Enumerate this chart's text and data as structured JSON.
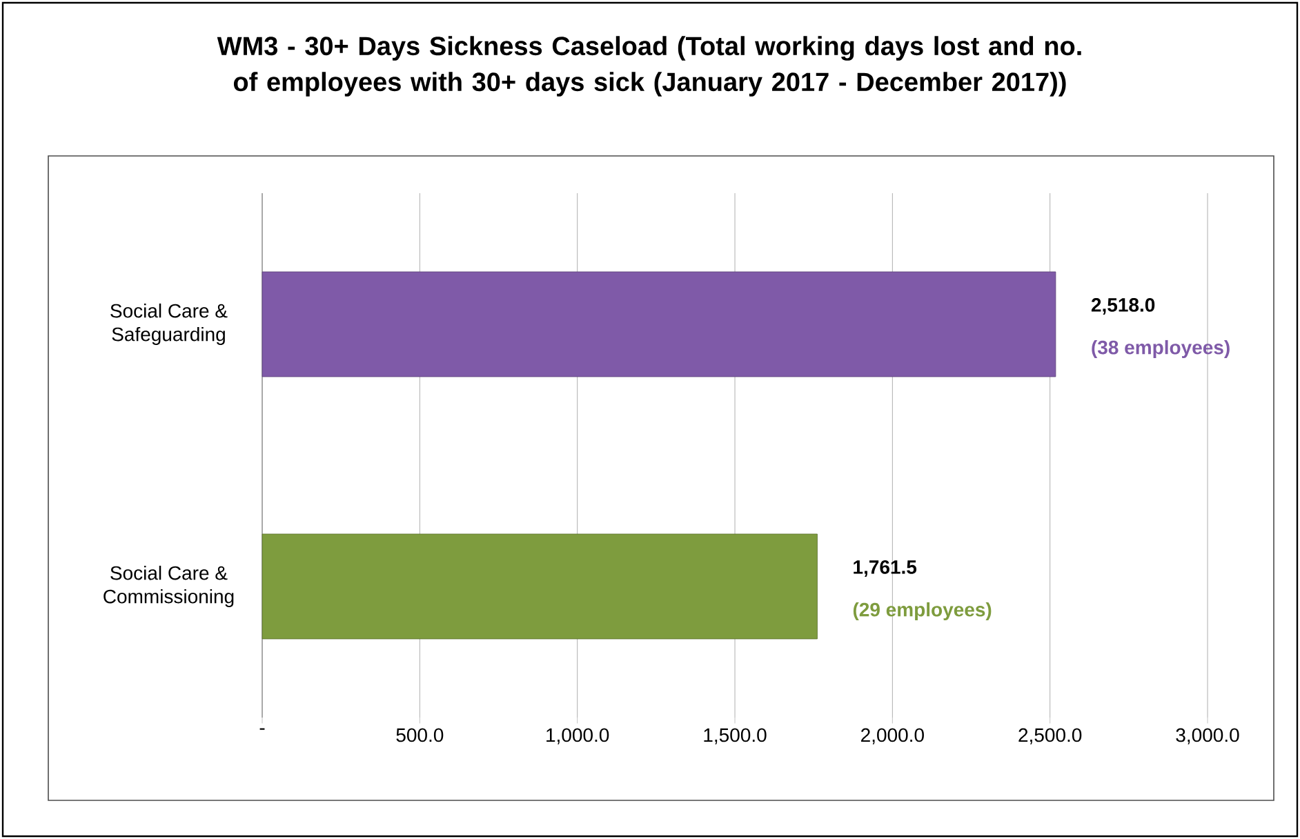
{
  "chart_data": {
    "type": "bar",
    "orientation": "horizontal",
    "title": "WM3 - 30+ Days Sickness Caseload (Total working days lost and no. of employees with 30+ days sick (January 2017 - December 2017))",
    "categories": [
      "Social Care & Safeguarding",
      "Social Care & Commissioning"
    ],
    "values": [
      2518.0,
      1761.5
    ],
    "colors": [
      "#7f5aa8",
      "#7e9c3e"
    ],
    "value_labels": [
      "2,518.0",
      "1,761.5"
    ],
    "annotations": [
      {
        "text": "(38 employees)",
        "x": 2518.0,
        "y": "Social Care & Safeguarding"
      },
      {
        "text": "(29 employees)",
        "x": 1761.5,
        "y": "Social Care & Commissioning"
      }
    ],
    "xlim": [
      0,
      3000
    ],
    "xticks": [
      {
        "value": 0,
        "label": "-"
      },
      {
        "value": 500,
        "label": "500.0"
      },
      {
        "value": 1000,
        "label": "1,000.0"
      },
      {
        "value": 1500,
        "label": "1,500.0"
      },
      {
        "value": 2000,
        "label": "2,000.0"
      },
      {
        "value": 2500,
        "label": "2,500.0"
      },
      {
        "value": 3000,
        "label": "3,000.0"
      }
    ],
    "grid": "x"
  }
}
